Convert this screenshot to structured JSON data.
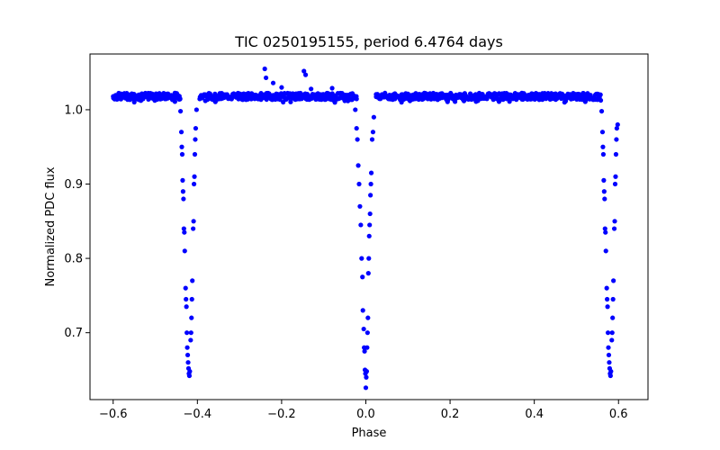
{
  "chart_data": {
    "type": "scatter",
    "title": "TIC 0250195155, period 6.4764 days",
    "xlabel": "Phase",
    "ylabel": "Normalized PDC flux",
    "xlim": [
      -0.655,
      0.67
    ],
    "ylim": [
      0.61,
      1.075
    ],
    "xticks": [
      -0.6,
      -0.4,
      -0.2,
      0.0,
      0.2,
      0.4,
      0.6
    ],
    "xtick_labels": [
      "−0.6",
      "−0.4",
      "−0.2",
      "0.0",
      "0.2",
      "0.4",
      "0.6"
    ],
    "yticks": [
      0.7,
      0.8,
      0.9,
      1.0
    ],
    "ytick_labels": [
      "0.7",
      "0.8",
      "0.9",
      "1.0"
    ],
    "grid": false,
    "marker_color": "#0000ff",
    "baseline_flux": 1.018,
    "eclipses": [
      {
        "center": -0.418,
        "depth_min": 0.642,
        "half_width": 0.024
      },
      {
        "center": 0.0,
        "depth_min": 0.626,
        "half_width": 0.024
      },
      {
        "center": 0.582,
        "depth_min": 0.642,
        "half_width": 0.024
      }
    ],
    "series": [
      {
        "name": "flux",
        "points": [
          [
            -0.44,
            0.998
          ],
          [
            -0.438,
            0.97
          ],
          [
            -0.437,
            0.95
          ],
          [
            -0.436,
            0.94
          ],
          [
            -0.435,
            0.905
          ],
          [
            -0.434,
            0.89
          ],
          [
            -0.433,
            0.88
          ],
          [
            -0.432,
            0.84
          ],
          [
            -0.431,
            0.835
          ],
          [
            -0.43,
            0.81
          ],
          [
            -0.428,
            0.76
          ],
          [
            -0.427,
            0.745
          ],
          [
            -0.426,
            0.735
          ],
          [
            -0.425,
            0.7
          ],
          [
            -0.424,
            0.68
          ],
          [
            -0.423,
            0.67
          ],
          [
            -0.422,
            0.66
          ],
          [
            -0.421,
            0.652
          ],
          [
            -0.42,
            0.645
          ],
          [
            -0.419,
            0.642
          ],
          [
            -0.418,
            0.648
          ],
          [
            -0.416,
            0.69
          ],
          [
            -0.415,
            0.7
          ],
          [
            -0.414,
            0.72
          ],
          [
            -0.413,
            0.745
          ],
          [
            -0.412,
            0.77
          ],
          [
            -0.41,
            0.84
          ],
          [
            -0.409,
            0.85
          ],
          [
            -0.408,
            0.9
          ],
          [
            -0.407,
            0.91
          ],
          [
            -0.406,
            0.94
          ],
          [
            -0.405,
            0.96
          ],
          [
            -0.404,
            0.975
          ],
          [
            -0.402,
            1.0
          ],
          [
            -0.025,
            1.0
          ],
          [
            -0.022,
            0.975
          ],
          [
            -0.02,
            0.96
          ],
          [
            -0.018,
            0.925
          ],
          [
            -0.016,
            0.9
          ],
          [
            -0.014,
            0.87
          ],
          [
            -0.012,
            0.845
          ],
          [
            -0.01,
            0.8
          ],
          [
            -0.008,
            0.775
          ],
          [
            -0.007,
            0.73
          ],
          [
            -0.005,
            0.705
          ],
          [
            -0.004,
            0.68
          ],
          [
            -0.003,
            0.675
          ],
          [
            -0.002,
            0.65
          ],
          [
            -0.001,
            0.645
          ],
          [
            0.0,
            0.626
          ],
          [
            0.001,
            0.64
          ],
          [
            0.002,
            0.648
          ],
          [
            0.003,
            0.68
          ],
          [
            0.004,
            0.7
          ],
          [
            0.005,
            0.72
          ],
          [
            0.006,
            0.78
          ],
          [
            0.007,
            0.8
          ],
          [
            0.008,
            0.83
          ],
          [
            0.009,
            0.845
          ],
          [
            0.01,
            0.86
          ],
          [
            0.011,
            0.885
          ],
          [
            0.012,
            0.9
          ],
          [
            0.013,
            0.915
          ],
          [
            0.015,
            0.96
          ],
          [
            0.017,
            0.97
          ],
          [
            0.019,
            0.99
          ],
          [
            0.56,
            0.998
          ],
          [
            0.562,
            0.97
          ],
          [
            0.563,
            0.95
          ],
          [
            0.564,
            0.94
          ],
          [
            0.565,
            0.905
          ],
          [
            0.566,
            0.89
          ],
          [
            0.567,
            0.88
          ],
          [
            0.568,
            0.84
          ],
          [
            0.569,
            0.835
          ],
          [
            0.57,
            0.81
          ],
          [
            0.572,
            0.76
          ],
          [
            0.573,
            0.745
          ],
          [
            0.574,
            0.735
          ],
          [
            0.575,
            0.7
          ],
          [
            0.576,
            0.68
          ],
          [
            0.577,
            0.67
          ],
          [
            0.578,
            0.66
          ],
          [
            0.579,
            0.652
          ],
          [
            0.58,
            0.645
          ],
          [
            0.581,
            0.642
          ],
          [
            0.582,
            0.648
          ],
          [
            0.584,
            0.69
          ],
          [
            0.585,
            0.7
          ],
          [
            0.586,
            0.72
          ],
          [
            0.587,
            0.745
          ],
          [
            0.588,
            0.77
          ],
          [
            0.59,
            0.84
          ],
          [
            0.591,
            0.85
          ],
          [
            0.592,
            0.9
          ],
          [
            0.593,
            0.91
          ],
          [
            0.594,
            0.94
          ],
          [
            0.595,
            0.96
          ],
          [
            0.596,
            0.975
          ],
          [
            0.598,
            0.98
          ],
          [
            -0.24,
            1.055
          ],
          [
            -0.237,
            1.043
          ],
          [
            -0.22,
            1.036
          ],
          [
            -0.147,
            1.052
          ],
          [
            -0.143,
            1.047
          ],
          [
            -0.2,
            1.03
          ],
          [
            -0.13,
            1.028
          ],
          [
            -0.08,
            1.029
          ],
          [
            -0.16,
            1.022
          ],
          [
            -0.05,
            1.012
          ],
          [
            -0.075,
            1.012
          ],
          [
            -0.11,
            1.014
          ]
        ]
      }
    ]
  }
}
